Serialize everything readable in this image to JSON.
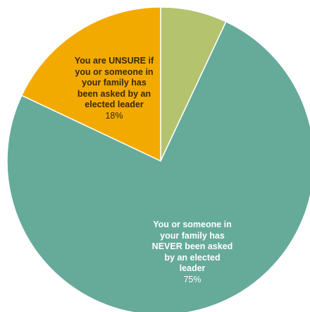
{
  "chart_data": {
    "type": "pie",
    "start_angle_deg": 0,
    "direction": "clockwise",
    "slices": [
      {
        "label": "",
        "value": 7,
        "value_label": "",
        "color": "#b4c36e"
      },
      {
        "label": "You or someone in\nyour family has\nNEVER been asked\nby an elected\nleader",
        "value": 75,
        "value_label": "75%",
        "color": "#66aa9a"
      },
      {
        "label": "You are UNSURE if\nyou or someone in\nyour family has\nbeen asked by an\nelected leader",
        "value": 18,
        "value_label": "18%",
        "color": "#f2aa00"
      }
    ]
  }
}
